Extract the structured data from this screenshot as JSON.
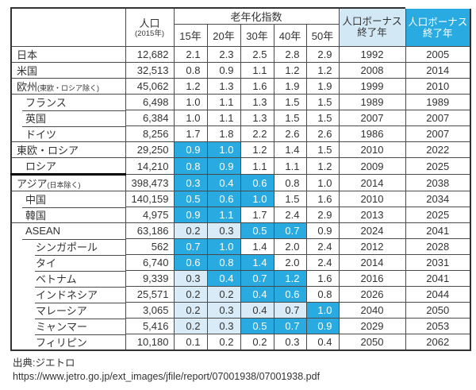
{
  "chart_data": {
    "type": "table",
    "header": {
      "country_col": "",
      "population": {
        "label": "人口",
        "sub": "(2015年)"
      },
      "aging_index_label": "老年化指数",
      "aging_year_cols": [
        "15年",
        "20年",
        "30年",
        "40年",
        "50年"
      ],
      "bonus_end_1": {
        "line1": "人口ボーナス",
        "line2": "終了年"
      },
      "bonus_end_2": {
        "line1": "人口ボーナス",
        "line2": "終了年"
      }
    },
    "rows": [
      {
        "name": "日本",
        "sub": "",
        "level": 0,
        "sep": "sep0",
        "pop": "12,682",
        "aging": [
          "2.1",
          "2.3",
          "2.5",
          "2.8",
          "2.9"
        ],
        "hl": [
          "",
          "",
          "",
          "",
          ""
        ],
        "bonus1": "1992",
        "bonus2": "2005"
      },
      {
        "name": "米国",
        "sub": "",
        "level": 0,
        "sep": "sep0",
        "pop": "32,513",
        "aging": [
          "0.8",
          "0.9",
          "1.1",
          "1.2",
          "1.2"
        ],
        "hl": [
          "",
          "",
          "",
          "",
          ""
        ],
        "bonus1": "2008",
        "bonus2": "2014"
      },
      {
        "name": "欧州",
        "sub": "(東欧・ロシア除く)",
        "level": 0,
        "sep": "sep0",
        "pop": "45,062",
        "aging": [
          "1.2",
          "1.3",
          "1.6",
          "1.9",
          "1.9"
        ],
        "hl": [
          "",
          "",
          "",
          "",
          ""
        ],
        "bonus1": "1999",
        "bonus2": "2010"
      },
      {
        "name": "フランス",
        "sub": "",
        "level": 1,
        "sep": "sep0",
        "pop": "6,498",
        "aging": [
          "1.0",
          "1.1",
          "1.3",
          "1.5",
          "1.5"
        ],
        "hl": [
          "",
          "",
          "",
          "",
          ""
        ],
        "bonus1": "1989",
        "bonus2": "1989"
      },
      {
        "name": "英国",
        "sub": "",
        "level": 1,
        "sep": "sep1",
        "pop": "6,384",
        "aging": [
          "1.0",
          "1.1",
          "1.3",
          "1.5",
          "1.5"
        ],
        "hl": [
          "",
          "",
          "",
          "",
          ""
        ],
        "bonus1": "2007",
        "bonus2": "2007"
      },
      {
        "name": "ドイツ",
        "sub": "",
        "level": 1,
        "sep": "sep1",
        "pop": "8,256",
        "aging": [
          "1.7",
          "1.8",
          "2.2",
          "2.6",
          "2.6"
        ],
        "hl": [
          "",
          "",
          "",
          "",
          ""
        ],
        "bonus1": "1986",
        "bonus2": "2007"
      },
      {
        "name": "東欧・ロシア",
        "sub": "",
        "level": 0,
        "sep": "sep0",
        "pop": "29,250",
        "aging": [
          "0.9",
          "1.0",
          "1.2",
          "1.4",
          "1.5"
        ],
        "hl": [
          "d",
          "d",
          "",
          "",
          ""
        ],
        "bonus1": "2010",
        "bonus2": "2022"
      },
      {
        "name": "ロシア",
        "sub": "",
        "level": 1,
        "sep": "sep0",
        "pop": "14,210",
        "aging": [
          "0.8",
          "0.9",
          "1.1",
          "1.1",
          "1.2"
        ],
        "hl": [
          "d",
          "d",
          "",
          "",
          ""
        ],
        "bonus1": "2009",
        "bonus2": "2025"
      },
      {
        "name": "アジア",
        "sub": "(日本除く)",
        "level": 0,
        "sep": "thick",
        "pop": "398,473",
        "aging": [
          "0.3",
          "0.4",
          "0.6",
          "0.8",
          "1.0"
        ],
        "hl": [
          "d",
          "d",
          "d",
          "",
          ""
        ],
        "bonus1": "2014",
        "bonus2": "2038"
      },
      {
        "name": "中国",
        "sub": "",
        "level": 1,
        "sep": "sep0",
        "pop": "140,159",
        "aging": [
          "0.5",
          "0.6",
          "1.0",
          "1.5",
          "1.6"
        ],
        "hl": [
          "d",
          "d",
          "d",
          "",
          ""
        ],
        "bonus1": "2010",
        "bonus2": "2034"
      },
      {
        "name": "韓国",
        "sub": "",
        "level": 1,
        "sep": "sep1",
        "pop": "4,975",
        "aging": [
          "0.9",
          "1.1",
          "1.7",
          "2.4",
          "2.9"
        ],
        "hl": [
          "d",
          "d",
          "",
          "",
          ""
        ],
        "bonus1": "2013",
        "bonus2": "2025"
      },
      {
        "name": "ASEAN",
        "sub": "",
        "level": 1,
        "sep": "sep0",
        "pop": "63,186",
        "aging": [
          "0.2",
          "0.3",
          "0.5",
          "0.7",
          "0.9"
        ],
        "hl": [
          "l",
          "l",
          "d",
          "d",
          ""
        ],
        "bonus1": "2024",
        "bonus2": "2041"
      },
      {
        "name": "シンガポール",
        "sub": "",
        "level": 2,
        "sep": "sep1",
        "pop": "562",
        "aging": [
          "0.7",
          "1.0",
          "1.4",
          "2.0",
          "2.4"
        ],
        "hl": [
          "d",
          "d",
          "",
          "",
          ""
        ],
        "bonus1": "2012",
        "bonus2": "2028"
      },
      {
        "name": "タイ",
        "sub": "",
        "level": 2,
        "sep": "sep2",
        "pop": "6,740",
        "aging": [
          "0.6",
          "0.8",
          "1.4",
          "2.0",
          "2.4"
        ],
        "hl": [
          "d",
          "d",
          "d",
          "",
          ""
        ],
        "bonus1": "2014",
        "bonus2": "2031"
      },
      {
        "name": "ベトナム",
        "sub": "",
        "level": 2,
        "sep": "sep2",
        "pop": "9,339",
        "aging": [
          "0.3",
          "0.4",
          "0.7",
          "1.2",
          "1.6"
        ],
        "hl": [
          "l",
          "d",
          "d",
          "d",
          ""
        ],
        "bonus1": "2016",
        "bonus2": "2041"
      },
      {
        "name": "インドネシア",
        "sub": "",
        "level": 2,
        "sep": "sep2",
        "pop": "25,571",
        "aging": [
          "0.2",
          "0.2",
          "0.4",
          "0.6",
          "0.8"
        ],
        "hl": [
          "l",
          "l",
          "d",
          "d",
          ""
        ],
        "bonus1": "2026",
        "bonus2": "2044"
      },
      {
        "name": "マレーシア",
        "sub": "",
        "level": 2,
        "sep": "sep2",
        "pop": "3,065",
        "aging": [
          "0.2",
          "0.3",
          "0.4",
          "0.7",
          "1.0"
        ],
        "hl": [
          "l",
          "l",
          "l",
          "l",
          "d"
        ],
        "bonus1": "2040",
        "bonus2": "2050"
      },
      {
        "name": "ミャンマー",
        "sub": "",
        "level": 2,
        "sep": "sep2",
        "pop": "5,416",
        "aging": [
          "0.2",
          "0.3",
          "0.5",
          "0.7",
          "0.9"
        ],
        "hl": [
          "l",
          "l",
          "d",
          "d",
          "d"
        ],
        "bonus1": "2029",
        "bonus2": "2053"
      },
      {
        "name": "フィリピン",
        "sub": "",
        "level": 2,
        "sep": "sep2",
        "pop": "10,180",
        "aging": [
          "0.1",
          "0.2",
          "0.2",
          "0.3",
          "0.4"
        ],
        "hl": [
          "",
          "",
          "",
          "",
          ""
        ],
        "bonus1": "2050",
        "bonus2": "2062"
      }
    ]
  },
  "footer": {
    "source": "出典:ジエトロ",
    "url": "https://www.jetro.go.jp/ext_images/jfile/report/07001938/07001938.pdf"
  },
  "colors": {
    "dark_blue": "#29abe2",
    "light_blue": "#d9ebf7",
    "header_light_blue": "#d3e8f5",
    "border": "#4a4a4a"
  }
}
